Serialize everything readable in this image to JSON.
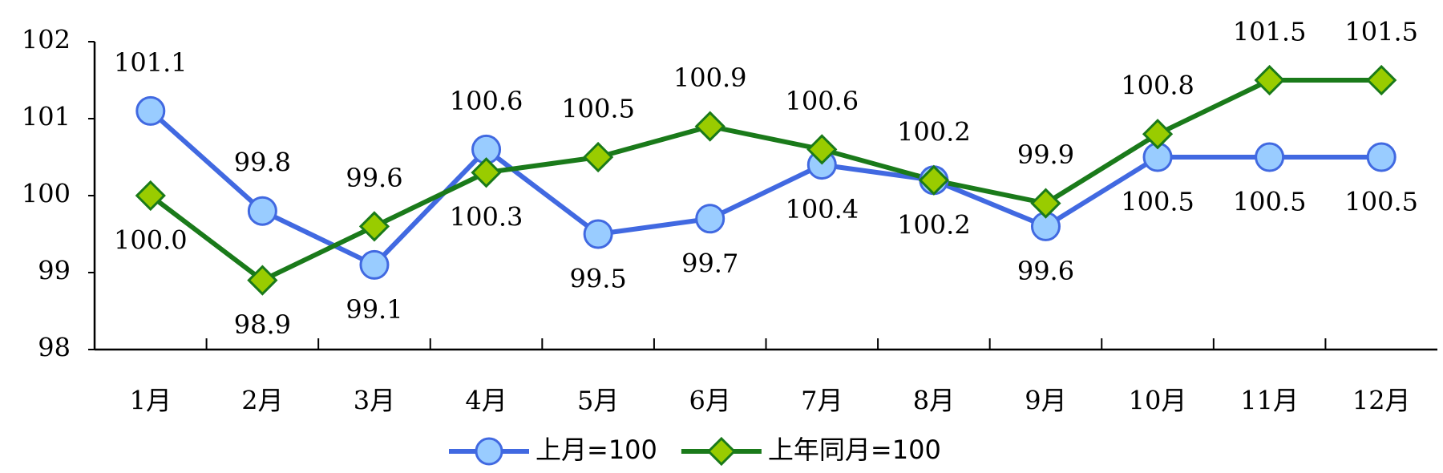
{
  "chart_data": {
    "type": "line",
    "categories": [
      "1月",
      "2月",
      "3月",
      "4月",
      "5月",
      "6月",
      "7月",
      "8月",
      "9月",
      "10月",
      "11月",
      "12月"
    ],
    "series": [
      {
        "name": "上月=100",
        "color": "#4169e1",
        "marker_color": "#99ccff",
        "marker": "circle",
        "values": [
          101.1,
          99.8,
          99.1,
          100.6,
          99.5,
          99.7,
          100.4,
          100.2,
          99.6,
          100.5,
          100.5,
          100.5
        ],
        "value_labels": [
          "101.1",
          "99.8",
          "99.1",
          "100.6",
          "99.5",
          "99.7",
          "100.4",
          "100.2",
          "99.6",
          "100.5",
          "100.5",
          "100.5"
        ]
      },
      {
        "name": "上年同月=100",
        "color": "#1a7a1a",
        "marker_color": "#99cc00",
        "marker": "diamond",
        "values": [
          100,
          98.9,
          99.6,
          100.3,
          100.5,
          100.9,
          100.6,
          100.2,
          99.9,
          100.8,
          101.5,
          101.5
        ],
        "value_labels": [
          "100.0",
          "98.9",
          "99.6",
          "100.3",
          "100.5",
          "100.9",
          "100.6",
          "100.2",
          "99.9",
          "100.8",
          "101.5",
          "101.5"
        ]
      }
    ],
    "ylim": [
      98,
      102
    ],
    "yticks": [
      98,
      99,
      100,
      101,
      102
    ],
    "grid": false,
    "legend": "bottom"
  }
}
